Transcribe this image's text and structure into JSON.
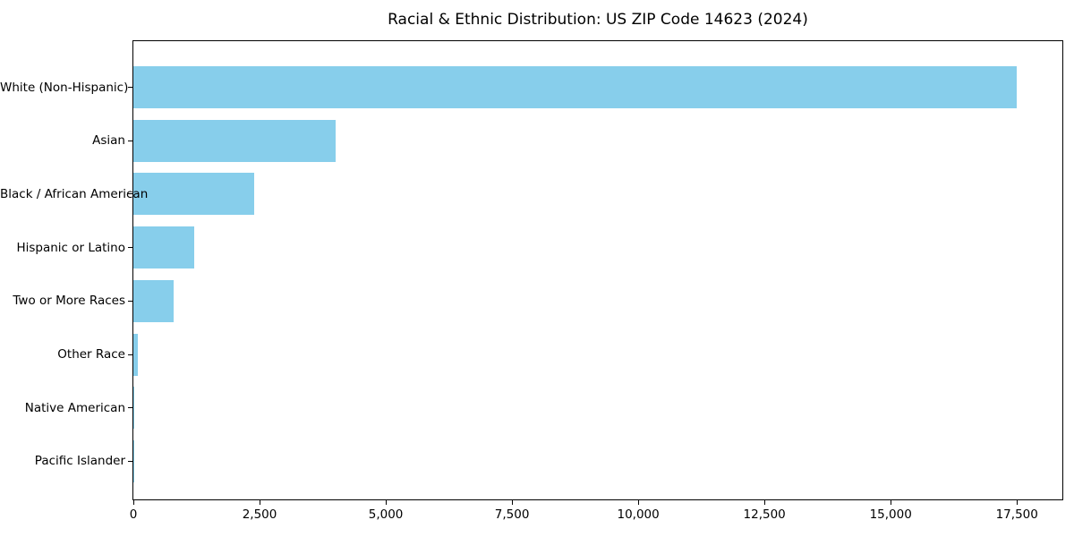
{
  "chart_data": {
    "type": "bar",
    "orientation": "horizontal",
    "title": "Racial & Ethnic Distribution: US ZIP Code 14623 (2024)",
    "categories": [
      "White (Non-Hispanic)",
      "Asian",
      "Black / African American",
      "Hispanic or Latino",
      "Two or More Races",
      "Other Race",
      "Native American",
      "Pacific Islander"
    ],
    "values": [
      17500,
      4000,
      2400,
      1200,
      800,
      85,
      25,
      5
    ],
    "xlabel": "",
    "ylabel": "",
    "xlim": [
      0,
      18400
    ],
    "x_ticks": [
      0,
      2500,
      5000,
      7500,
      10000,
      12500,
      15000,
      17500
    ],
    "x_tick_labels": [
      "0",
      "2,500",
      "5,000",
      "7,500",
      "10,000",
      "12,500",
      "15,000",
      "17,500"
    ],
    "bar_color": "#87CEEB",
    "axis_color": "#000000",
    "text_color": "#000000",
    "background_color": "#FFFFFF",
    "grid": false,
    "legend": false
  }
}
